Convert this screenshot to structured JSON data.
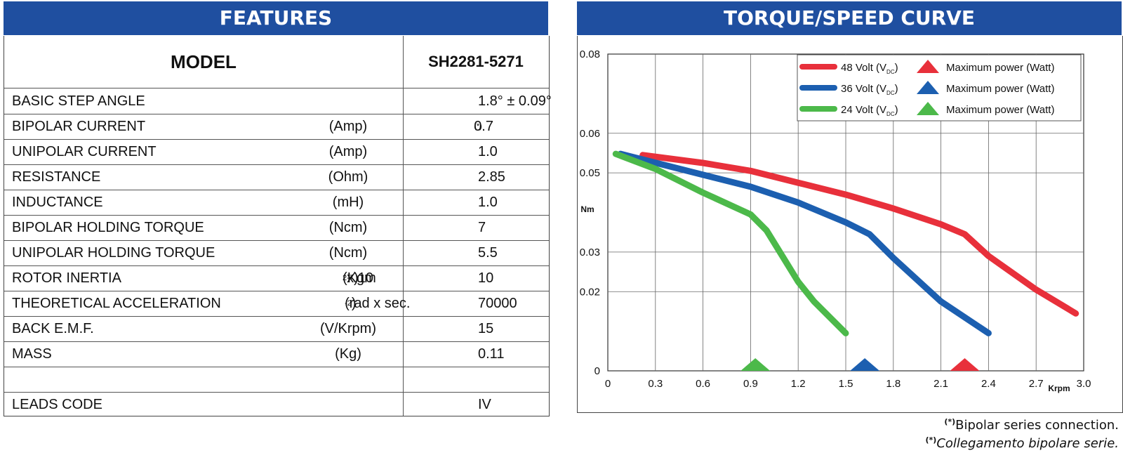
{
  "features": {
    "header": "FEATURES",
    "model_label": "MODEL",
    "model_value": "SH2281-5271",
    "rows": [
      {
        "label": "BASIC STEP ANGLE",
        "unit": "",
        "value": "1.8° ± 0.09°"
      },
      {
        "label": "BIPOLAR CURRENT",
        "unit": "(Amp)",
        "value": "0.7",
        "mark": "(*)"
      },
      {
        "label": "UNIPOLAR CURRENT",
        "unit": "(Amp)",
        "value": "1.0"
      },
      {
        "label": "RESISTANCE",
        "unit": "(Ohm)",
        "value": "2.85"
      },
      {
        "label": "INDUCTANCE",
        "unit": "(mH)",
        "value": "1.0"
      },
      {
        "label": "BIPOLAR HOLDING TORQUE",
        "unit": "(Ncm)",
        "value": "7"
      },
      {
        "label": "UNIPOLAR HOLDING TORQUE",
        "unit": "(Ncm)",
        "value": "5.5"
      },
      {
        "label": "ROTOR INERTIA",
        "unit_pre": "(Kgm ",
        "unit_sup": "2",
        "unit_post": " x 10 ",
        "unit_sup2": "-7",
        "unit_end": ")",
        "value": "10"
      },
      {
        "label": "THEORETICAL ACCELERATION",
        "unit_pre": "(rad x sec.",
        "unit_sup": "-2",
        "unit_post": ")",
        "value": "70000"
      },
      {
        "label": "BACK E.M.F.",
        "unit": "(V/Krpm)",
        "value": "15"
      },
      {
        "label": "MASS",
        "unit": "(Kg)",
        "value": "0.11"
      },
      {
        "label": "",
        "unit": "",
        "value": ""
      },
      {
        "label": "LEADS CODE",
        "unit": "",
        "value": "IV"
      }
    ]
  },
  "chart_header": "TORQUE/SPEED CURVE",
  "footnotes": {
    "mark": "(*)",
    "line1": "Bipolar series connection.",
    "line2": "Collegamento bipolare serie."
  },
  "chart_data": {
    "type": "line",
    "ylabel": "Nm",
    "xlabel": "Krpm",
    "xlim": [
      0,
      3.0
    ],
    "ylim": [
      0,
      0.08
    ],
    "x_ticks": [
      "0",
      "0.3",
      "0.6",
      "0.9",
      "1.2",
      "1.5",
      "1.8",
      "2.1",
      "2.4",
      "2.7",
      "3.0"
    ],
    "y_ticks": [
      {
        "value": 0,
        "label": "0"
      },
      {
        "value": 0.02,
        "label": "0.02"
      },
      {
        "value": 0.03,
        "label": "0.03"
      },
      {
        "value": 0.05,
        "label": "0.05"
      },
      {
        "value": 0.06,
        "label": "0.06"
      },
      {
        "value": 0.08,
        "label": "0.08"
      }
    ],
    "grid": true,
    "legend_position": "top-right",
    "legend_max_power_label": "Maximum power (Watt)",
    "series": [
      {
        "name": "48 Volt (VDC)",
        "volts": "48 Volt (V",
        "sub": "DC",
        "close": ")",
        "color": "#e8303b",
        "x": [
          0.22,
          0.6,
          0.9,
          1.2,
          1.5,
          1.8,
          2.1,
          2.25,
          2.4,
          2.7,
          2.95
        ],
        "y": [
          0.0545,
          0.0525,
          0.0505,
          0.0475,
          0.0445,
          0.041,
          0.037,
          0.0345,
          0.029,
          0.0205,
          0.0145
        ],
        "max_power_x": 2.25
      },
      {
        "name": "36 Volt (VDC)",
        "volts": "36 Volt (V",
        "sub": "DC",
        "close": ")",
        "color": "#1c5fb0",
        "x": [
          0.08,
          0.6,
          0.9,
          1.2,
          1.5,
          1.65,
          1.8,
          2.1,
          2.4
        ],
        "y": [
          0.0548,
          0.0495,
          0.0465,
          0.0425,
          0.0375,
          0.0345,
          0.0285,
          0.0175,
          0.0095
        ],
        "max_power_x": 1.62
      },
      {
        "name": "24 Volt (VDC)",
        "volts": "24 Volt (V",
        "sub": "DC",
        "close": ")",
        "color": "#4cb94a",
        "x": [
          0.05,
          0.3,
          0.6,
          0.9,
          1.0,
          1.1,
          1.2,
          1.3,
          1.5
        ],
        "y": [
          0.0548,
          0.051,
          0.045,
          0.0395,
          0.0355,
          0.029,
          0.0225,
          0.0175,
          0.0095
        ],
        "max_power_x": 0.93
      }
    ]
  }
}
